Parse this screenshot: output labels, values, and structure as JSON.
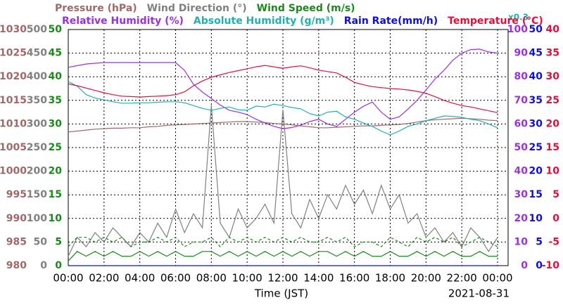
{
  "chart_data": {
    "type": "line",
    "xlabel": "Time (JST)",
    "date": "2021-08-31",
    "annotation": "x0.3",
    "grid": true,
    "xlim": [
      0,
      24
    ],
    "xticks": [
      {
        "value": 0,
        "label": "00:00"
      },
      {
        "value": 2,
        "label": "02:00"
      },
      {
        "value": 4,
        "label": "04:00"
      },
      {
        "value": 6,
        "label": "06:00"
      },
      {
        "value": 8,
        "label": "08:00"
      },
      {
        "value": 10,
        "label": "10:00"
      },
      {
        "value": 12,
        "label": "12:00"
      },
      {
        "value": 14,
        "label": "14:00"
      },
      {
        "value": 16,
        "label": "16:00"
      },
      {
        "value": 18,
        "label": "18:00"
      },
      {
        "value": 20,
        "label": "20:00"
      },
      {
        "value": 22,
        "label": "22:00"
      },
      {
        "value": 24,
        "label": "00:00"
      }
    ],
    "axes": [
      {
        "side": "left",
        "color": "#a06868",
        "lim": [
          980,
          1030
        ],
        "ticks": [
          980,
          985,
          990,
          995,
          1000,
          1005,
          1010,
          1015,
          1020,
          1025,
          1030
        ]
      },
      {
        "side": "left",
        "color": "#808080",
        "lim": [
          0,
          500
        ],
        "ticks": [
          0,
          50,
          100,
          150,
          200,
          250,
          300,
          350,
          400,
          450,
          500
        ]
      },
      {
        "side": "left",
        "color": "#1a8a1a",
        "lim": [
          0,
          50
        ],
        "ticks": [
          0,
          5,
          10,
          15,
          20,
          25,
          30,
          35,
          40,
          45,
          50
        ]
      },
      {
        "side": "right",
        "color": "#9b30e0",
        "lim": [
          0,
          100
        ],
        "ticks": [
          0,
          10,
          20,
          30,
          40,
          50,
          60,
          70,
          80,
          90,
          100
        ]
      },
      {
        "side": "right",
        "color": "#1010d0",
        "lim": [
          0,
          50
        ],
        "ticks": [
          0,
          5,
          10,
          15,
          20,
          25,
          30,
          35,
          40,
          45,
          50
        ]
      },
      {
        "side": "right",
        "color": "#e0103a",
        "lim": [
          -10,
          40
        ],
        "ticks": [
          -10,
          -5,
          0,
          5,
          10,
          15,
          20,
          25,
          30,
          35,
          40
        ]
      }
    ],
    "x": [
      0,
      0.5,
      1,
      1.5,
      2,
      2.5,
      3,
      3.5,
      4,
      4.5,
      5,
      5.5,
      6,
      6.5,
      7,
      7.5,
      8,
      8.5,
      9,
      9.5,
      10,
      10.5,
      11,
      11.5,
      12,
      12.5,
      13,
      13.5,
      14,
      14.5,
      15,
      15.5,
      16,
      16.5,
      17,
      17.5,
      18,
      18.5,
      19,
      19.5,
      20,
      20.5,
      21,
      21.5,
      22,
      22.5,
      23,
      23.5,
      24
    ],
    "series": [
      {
        "name": "Pressure (hPa)",
        "color": "#a06868",
        "axis": 0,
        "legend_row": 0,
        "values": [
          1008.3,
          1008.5,
          1008.7,
          1008.9,
          1009,
          1009.1,
          1009.1,
          1009.2,
          1009.2,
          1009.4,
          1009.5,
          1009.7,
          1009.8,
          1009.9,
          1010,
          1010.1,
          1010.2,
          1010.3,
          1010.4,
          1010.5,
          1010.5,
          1010.4,
          1010.3,
          1010.1,
          1010,
          1009.8,
          1009.6,
          1009.4,
          1009.2,
          1009.2,
          1009.3,
          1009.4,
          1009.5,
          1009.6,
          1009.6,
          1009.7,
          1009.8,
          1009.9,
          1010.1,
          1010.4,
          1010.7,
          1010.9,
          1011,
          1011.1,
          1011.2,
          1011.1,
          1011,
          1010.8,
          1010.7
        ]
      },
      {
        "name": "Wind Direction (°)",
        "color": "#808080",
        "axis": 1,
        "legend_row": 0,
        "values": [
          20,
          60,
          40,
          70,
          50,
          80,
          60,
          40,
          70,
          50,
          90,
          60,
          120,
          70,
          110,
          80,
          340,
          90,
          60,
          120,
          80,
          100,
          130,
          90,
          330,
          110,
          80,
          140,
          100,
          150,
          120,
          170,
          130,
          160,
          110,
          170,
          120,
          150,
          90,
          110,
          60,
          80,
          50,
          70,
          40,
          80,
          60,
          30,
          60
        ]
      },
      {
        "name": "Wind Speed (m/s)",
        "color": "#1a8a1a",
        "axis": 2,
        "legend_row": 0,
        "values": [
          1,
          3,
          2,
          3,
          2,
          3,
          2,
          2,
          3,
          2,
          3,
          2,
          3,
          2,
          2,
          3,
          3,
          2,
          3,
          2,
          3,
          2,
          3,
          2,
          3,
          2,
          3,
          2,
          3,
          3,
          2,
          3,
          2,
          3,
          2,
          2,
          3,
          2,
          2,
          3,
          2,
          3,
          2,
          3,
          2,
          2,
          3,
          2,
          2
        ]
      },
      {
        "color": "#1a8a1a",
        "axis": 2,
        "dash": true,
        "values": [
          4,
          6,
          6,
          5,
          6,
          5,
          6,
          4,
          5,
          5,
          6,
          5,
          6,
          4,
          5,
          5,
          6,
          4,
          6,
          5,
          6,
          5,
          6,
          5,
          6,
          5,
          6,
          5,
          5,
          6,
          5,
          6,
          4,
          5,
          5,
          4,
          6,
          5,
          4,
          6,
          5,
          6,
          5,
          6,
          4,
          5,
          6,
          5,
          4
        ]
      },
      {
        "name": "Relative Humidity (%)",
        "color": "#9b30e0",
        "axis": 3,
        "legend_row": 1,
        "values": [
          84,
          84.7,
          85.4,
          85.7,
          86,
          86,
          86,
          86,
          86,
          86,
          86,
          86,
          86,
          82.7,
          76.8,
          73.5,
          70.8,
          68,
          65.8,
          65,
          64,
          62,
          60.4,
          59,
          58,
          58.5,
          59.5,
          61,
          62,
          60,
          59,
          62,
          65,
          67.5,
          69.3,
          65,
          62,
          63,
          66.4,
          70,
          74.4,
          79,
          82.7,
          87,
          90,
          91.5,
          91.7,
          90.5,
          90
        ]
      },
      {
        "name": "Absolute Humidity (g/m³)",
        "color": "#20b0b0",
        "axis": 4,
        "legend_row": 1,
        "values": [
          39,
          38,
          36.2,
          35.5,
          35.1,
          34.7,
          34.4,
          34.4,
          34.5,
          34.5,
          34.6,
          34.7,
          34.7,
          34.5,
          33.9,
          33.3,
          32.9,
          33.3,
          33.6,
          33,
          32.9,
          33.8,
          33.6,
          34.2,
          33.9,
          33.5,
          33.2,
          32.2,
          31.7,
          32.5,
          32.7,
          31.5,
          31,
          30.2,
          29.5,
          28.5,
          27.7,
          28.5,
          29.5,
          30,
          30.7,
          31.2,
          31.7,
          31.6,
          31.4,
          31,
          30.7,
          30,
          29.2
        ]
      },
      {
        "name": "Rain Rate(mm/h)",
        "color": "#1010d0",
        "axis": 4,
        "legend_row": 1,
        "values": [
          0,
          0,
          0,
          0,
          0,
          0,
          0,
          0,
          0,
          0,
          0,
          0,
          0,
          0,
          0,
          0,
          0,
          0,
          0,
          0,
          0,
          0,
          0,
          0,
          0,
          0,
          0,
          0,
          0,
          0,
          0,
          0,
          0,
          0,
          0,
          0,
          0,
          0,
          0,
          0,
          0,
          0,
          0,
          0,
          0,
          0,
          0,
          0,
          0
        ]
      },
      {
        "name": "Temperature (°C)",
        "color": "#e0103a",
        "axis": 5,
        "legend_row": 1,
        "values": [
          28.5,
          28.1,
          27.6,
          27.1,
          26.6,
          26.2,
          25.9,
          25.8,
          25.7,
          25.8,
          25.9,
          26,
          26.2,
          26.8,
          28.1,
          29.1,
          29.9,
          30.4,
          30.9,
          31.3,
          31.7,
          32.1,
          32.4,
          32.1,
          31.8,
          32.1,
          32.3,
          31.9,
          31.4,
          31.1,
          30.8,
          29.9,
          28.8,
          28.3,
          27.9,
          27.7,
          27.5,
          27.4,
          27.2,
          26.9,
          26.5,
          25.8,
          25,
          24.4,
          23.9,
          23.6,
          23.2,
          22.8,
          22.4
        ]
      }
    ]
  }
}
